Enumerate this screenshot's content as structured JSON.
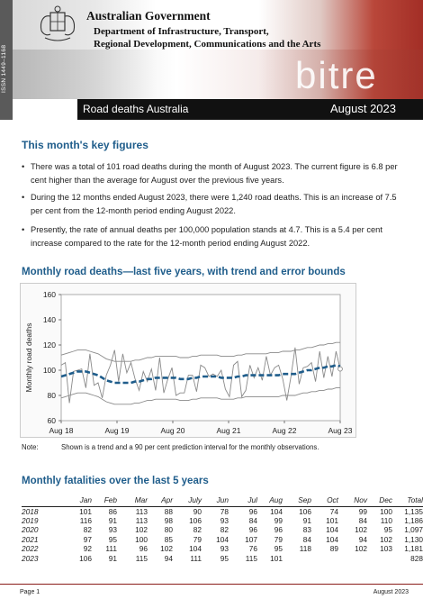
{
  "header": {
    "issn": "ISSN 1449–1168",
    "government": "Australian Government",
    "department_line1": "Department of Infrastructure, Transport,",
    "department_line2": "Regional Development, Communications and the Arts",
    "logo_text": "bitre",
    "title": "Road deaths Australia",
    "date": "August 2023"
  },
  "key_figures": {
    "heading": "This month's key figures",
    "bullets": [
      "There was a total of 101 road deaths during the month of August 2023. The current figure is 6.8 per cent higher than the average for August over the previous five years.",
      "During the 12 months ended August 2023, there were 1,240 road deaths. This is an increase of 7.5 per cent from the 12-month period ending August 2022.",
      "Presently, the rate of annual deaths per 100,000 population stands at 4.7. This is a 5.4 per cent increase compared to the rate for the 12-month period ending August 2022."
    ]
  },
  "chart_section": {
    "heading": "Monthly road deaths—last five years, with trend and error bounds",
    "note_label": "Note:",
    "note_text": "Shown is a trend and a 90 per cent prediction interval for the monthly observations."
  },
  "chart_data": {
    "type": "line",
    "title": "",
    "ylabel": "Monthly  road  deaths",
    "xlabel": "",
    "ylim": [
      60,
      160
    ],
    "yticks": [
      60,
      80,
      100,
      120,
      140,
      160
    ],
    "xticks": [
      "Aug 18",
      "Aug 19",
      "Aug 20",
      "Aug 21",
      "Aug 22",
      "Aug 23"
    ],
    "series": [
      {
        "role": "observed",
        "values": [
          104,
          106,
          74,
          99,
          100,
          101,
          86,
          113,
          88,
          90,
          78,
          96,
          104,
          116,
          91,
          113,
          98,
          106,
          93,
          84,
          99,
          91,
          101,
          84,
          110,
          82,
          93,
          102,
          80,
          82,
          82,
          96,
          96,
          83,
          104,
          102,
          95,
          97,
          95,
          100,
          85,
          79,
          104,
          107,
          79,
          84,
          104,
          94,
          102,
          92,
          111,
          96,
          102,
          104,
          93,
          76,
          95,
          118,
          89,
          102,
          103,
          106,
          91,
          115,
          94,
          111,
          95,
          115,
          101
        ]
      },
      {
        "role": "trend",
        "values": [
          95,
          96,
          97,
          98,
          99,
          99,
          99,
          98,
          97,
          96,
          94,
          92,
          91,
          90,
          90,
          90,
          90,
          90,
          91,
          91,
          92,
          93,
          93,
          94,
          94,
          94,
          94,
          94,
          94,
          93,
          93,
          93,
          94,
          94,
          95,
          95,
          95,
          95,
          95,
          94,
          94,
          94,
          94,
          95,
          95,
          96,
          96,
          96,
          96,
          96,
          96,
          96,
          96,
          96,
          97,
          97,
          97,
          97,
          98,
          99,
          100,
          100,
          101,
          102,
          102,
          103,
          103,
          104,
          103
        ]
      },
      {
        "role": "upper_bound",
        "values": [
          112,
          113,
          114,
          115,
          116,
          116,
          116,
          115,
          114,
          113,
          111,
          109,
          108,
          107,
          107,
          107,
          107,
          107,
          108,
          108,
          109,
          110,
          110,
          111,
          111,
          111,
          111,
          111,
          111,
          110,
          110,
          110,
          111,
          111,
          112,
          112,
          112,
          112,
          112,
          111,
          111,
          111,
          111,
          112,
          112,
          113,
          113,
          113,
          113,
          113,
          113,
          114,
          114,
          114,
          115,
          115,
          115,
          116,
          116,
          117,
          118,
          118,
          119,
          120,
          120,
          121,
          121,
          122,
          122
        ]
      },
      {
        "role": "lower_bound",
        "values": [
          78,
          79,
          80,
          81,
          82,
          82,
          82,
          81,
          80,
          79,
          77,
          75,
          74,
          73,
          73,
          73,
          73,
          73,
          74,
          74,
          75,
          76,
          76,
          77,
          77,
          77,
          77,
          77,
          77,
          76,
          76,
          76,
          77,
          77,
          78,
          78,
          78,
          78,
          78,
          77,
          77,
          77,
          77,
          78,
          78,
          79,
          79,
          79,
          79,
          79,
          79,
          79,
          79,
          79,
          80,
          80,
          80,
          80,
          81,
          82,
          82,
          83,
          83,
          84,
          84,
          85,
          85,
          86,
          86
        ]
      }
    ],
    "colors": {
      "observed": "#8a8a8a",
      "trend": "#1f5d8b",
      "bounds": "#8a8a8a"
    },
    "grid": false
  },
  "table_section": {
    "heading": "Monthly fatalities over the last 5 years",
    "columns": [
      "",
      "Jan",
      "Feb",
      "Mar",
      "Apr",
      "July",
      "Jun",
      "Jul",
      "Aug",
      "Sep",
      "Oct",
      "Nov",
      "Dec",
      "Total"
    ],
    "rows": [
      [
        "2018",
        "101",
        "86",
        "113",
        "88",
        "90",
        "78",
        "96",
        "104",
        "106",
        "74",
        "99",
        "100",
        "1,135"
      ],
      [
        "2019",
        "116",
        "91",
        "113",
        "98",
        "106",
        "93",
        "84",
        "99",
        "91",
        "101",
        "84",
        "110",
        "1,186"
      ],
      [
        "2020",
        "82",
        "93",
        "102",
        "80",
        "82",
        "82",
        "96",
        "96",
        "83",
        "104",
        "102",
        "95",
        "1,097"
      ],
      [
        "2021",
        "97",
        "95",
        "100",
        "85",
        "79",
        "104",
        "107",
        "79",
        "84",
        "104",
        "94",
        "102",
        "1,130"
      ],
      [
        "2022",
        "92",
        "111",
        "96",
        "102",
        "104",
        "93",
        "76",
        "95",
        "118",
        "89",
        "102",
        "103",
        "1,181"
      ],
      [
        "2023",
        "106",
        "91",
        "115",
        "94",
        "111",
        "95",
        "115",
        "101",
        "",
        "",
        "",
        "",
        "828"
      ]
    ]
  },
  "footer": {
    "left": "Page 1",
    "right": "August 2023"
  }
}
